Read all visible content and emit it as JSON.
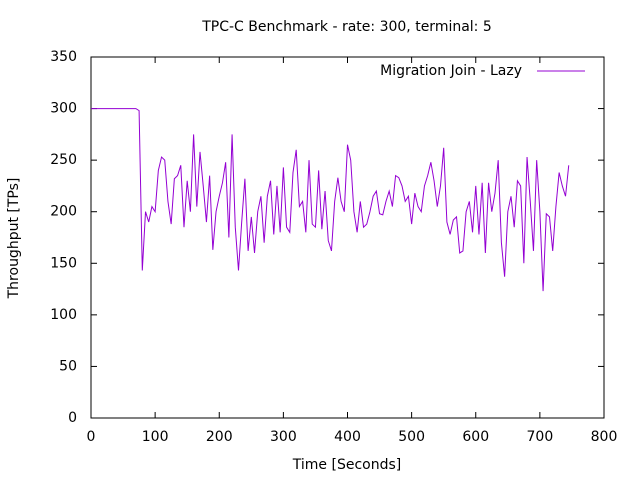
{
  "chart_data": {
    "type": "line",
    "title": "TPC-C Benchmark - rate: 300, terminal: 5",
    "xlabel": "Time [Seconds]",
    "ylabel": "Throughput [TPs]",
    "x": [
      0,
      5,
      10,
      15,
      20,
      25,
      30,
      35,
      40,
      45,
      50,
      55,
      60,
      65,
      70,
      75,
      80,
      85,
      90,
      95,
      100,
      105,
      110,
      115,
      120,
      125,
      130,
      135,
      140,
      145,
      150,
      155,
      160,
      165,
      170,
      175,
      180,
      185,
      190,
      195,
      200,
      205,
      210,
      215,
      220,
      225,
      230,
      235,
      240,
      245,
      250,
      255,
      260,
      265,
      270,
      275,
      280,
      285,
      290,
      295,
      300,
      305,
      310,
      315,
      320,
      325,
      330,
      335,
      340,
      345,
      350,
      355,
      360,
      365,
      370,
      375,
      380,
      385,
      390,
      395,
      400,
      405,
      410,
      415,
      420,
      425,
      430,
      435,
      440,
      445,
      450,
      455,
      460,
      465,
      470,
      475,
      480,
      485,
      490,
      495,
      500,
      505,
      510,
      515,
      520,
      525,
      530,
      535,
      540,
      545,
      550,
      555,
      560,
      565,
      570,
      575,
      580,
      585,
      590,
      595,
      600,
      605,
      610,
      615,
      620,
      625,
      630,
      635,
      640,
      645,
      650,
      655,
      660,
      665,
      670,
      675,
      680,
      685,
      690,
      695,
      700,
      705,
      710,
      715,
      720,
      725,
      730,
      735,
      740,
      745
    ],
    "series": [
      {
        "name": "Migration Join - Lazy",
        "color": "#9400d3",
        "values": [
          300,
          300,
          300,
          300,
          300,
          300,
          300,
          300,
          300,
          300,
          300,
          300,
          300,
          300,
          300,
          298,
          143,
          200,
          190,
          205,
          200,
          240,
          253,
          250,
          210,
          188,
          232,
          235,
          245,
          185,
          230,
          200,
          275,
          205,
          258,
          225,
          190,
          235,
          163,
          200,
          215,
          228,
          248,
          175,
          275,
          185,
          143,
          190,
          232,
          162,
          195,
          160,
          200,
          215,
          170,
          215,
          230,
          178,
          225,
          180,
          243,
          185,
          180,
          238,
          260,
          205,
          210,
          180,
          250,
          188,
          185,
          240,
          183,
          220,
          172,
          162,
          210,
          233,
          210,
          200,
          265,
          250,
          200,
          180,
          210,
          185,
          188,
          200,
          215,
          220,
          198,
          197,
          210,
          220,
          205,
          235,
          233,
          225,
          210,
          215,
          188,
          218,
          205,
          200,
          225,
          235,
          248,
          230,
          205,
          225,
          262,
          190,
          178,
          192,
          195,
          160,
          162,
          200,
          210,
          180,
          225,
          178,
          228,
          160,
          228,
          200,
          218,
          250,
          170,
          137,
          200,
          215,
          185,
          230,
          225,
          150,
          253,
          210,
          162,
          250,
          200,
          123,
          198,
          195,
          162,
          205,
          238,
          225,
          215,
          245
        ]
      }
    ],
    "xlim": [
      0,
      800
    ],
    "xticks": [
      0,
      100,
      200,
      300,
      400,
      500,
      600,
      700,
      800
    ],
    "ylim": [
      0,
      350
    ],
    "yticks": [
      0,
      50,
      100,
      150,
      200,
      250,
      300,
      350
    ],
    "legend": "top-right"
  }
}
